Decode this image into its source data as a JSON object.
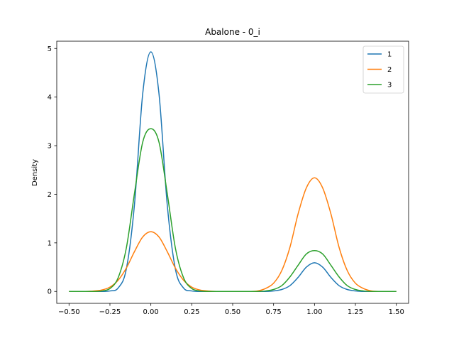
{
  "chart_data": {
    "type": "line",
    "title": "Abalone - 0_i",
    "xlabel": "",
    "ylabel": "Density",
    "xlim": [
      -0.575,
      1.575
    ],
    "ylim": [
      -0.245,
      5.15
    ],
    "x_ticks": [
      -0.5,
      -0.25,
      0.0,
      0.25,
      0.5,
      0.75,
      1.0,
      1.25,
      1.5
    ],
    "x_tick_labels": [
      "−0.50",
      "−0.25",
      "0.00",
      "0.25",
      "0.50",
      "0.75",
      "1.00",
      "1.25",
      "1.50"
    ],
    "y_ticks": [
      0,
      1,
      2,
      3,
      4,
      5
    ],
    "y_tick_labels": [
      "0",
      "1",
      "2",
      "3",
      "4",
      "5"
    ],
    "grid": false,
    "legend_position": "top-right",
    "x": [
      -0.5,
      -0.45,
      -0.4,
      -0.35,
      -0.3,
      -0.25,
      -0.2,
      -0.15,
      -0.1,
      -0.05,
      0.0,
      0.05,
      0.1,
      0.15,
      0.2,
      0.25,
      0.3,
      0.35,
      0.4,
      0.45,
      0.5,
      0.55,
      0.6,
      0.65,
      0.7,
      0.75,
      0.8,
      0.85,
      0.9,
      0.95,
      1.0,
      1.05,
      1.1,
      1.15,
      1.2,
      1.25,
      1.3,
      1.35,
      1.4,
      1.45,
      1.5
    ],
    "series": [
      {
        "name": "1",
        "color": "#1f77b4",
        "values": [
          0.0,
          0.0,
          0.0,
          0.0,
          0.0,
          0.01,
          0.07,
          0.46,
          1.79,
          4.06,
          4.93,
          4.06,
          1.79,
          0.46,
          0.07,
          0.01,
          0.0,
          0.0,
          0.0,
          0.0,
          0.0,
          0.0,
          0.0,
          0.0,
          0.0,
          0.01,
          0.04,
          0.12,
          0.29,
          0.5,
          0.59,
          0.5,
          0.29,
          0.12,
          0.04,
          0.01,
          0.0,
          0.0,
          0.0,
          0.0,
          0.0
        ]
      },
      {
        "name": "2",
        "color": "#ff7f0e",
        "values": [
          0.0,
          0.0,
          0.0,
          0.01,
          0.03,
          0.09,
          0.23,
          0.48,
          0.82,
          1.12,
          1.23,
          1.12,
          0.82,
          0.48,
          0.23,
          0.09,
          0.03,
          0.01,
          0.0,
          0.0,
          0.0,
          0.0,
          0.0,
          0.01,
          0.06,
          0.17,
          0.43,
          0.91,
          1.6,
          2.13,
          2.34,
          2.13,
          1.6,
          0.91,
          0.43,
          0.17,
          0.06,
          0.01,
          0.0,
          0.0,
          0.0
        ]
      },
      {
        "name": "3",
        "color": "#2ca02c",
        "values": [
          0.0,
          0.0,
          0.0,
          0.0,
          0.01,
          0.06,
          0.28,
          0.89,
          2.02,
          3.07,
          3.35,
          3.07,
          2.02,
          0.89,
          0.28,
          0.06,
          0.01,
          0.0,
          0.0,
          0.0,
          0.0,
          0.0,
          0.0,
          0.0,
          0.01,
          0.04,
          0.12,
          0.3,
          0.54,
          0.77,
          0.84,
          0.77,
          0.54,
          0.3,
          0.12,
          0.04,
          0.01,
          0.0,
          0.0,
          0.0,
          0.0
        ]
      }
    ]
  }
}
